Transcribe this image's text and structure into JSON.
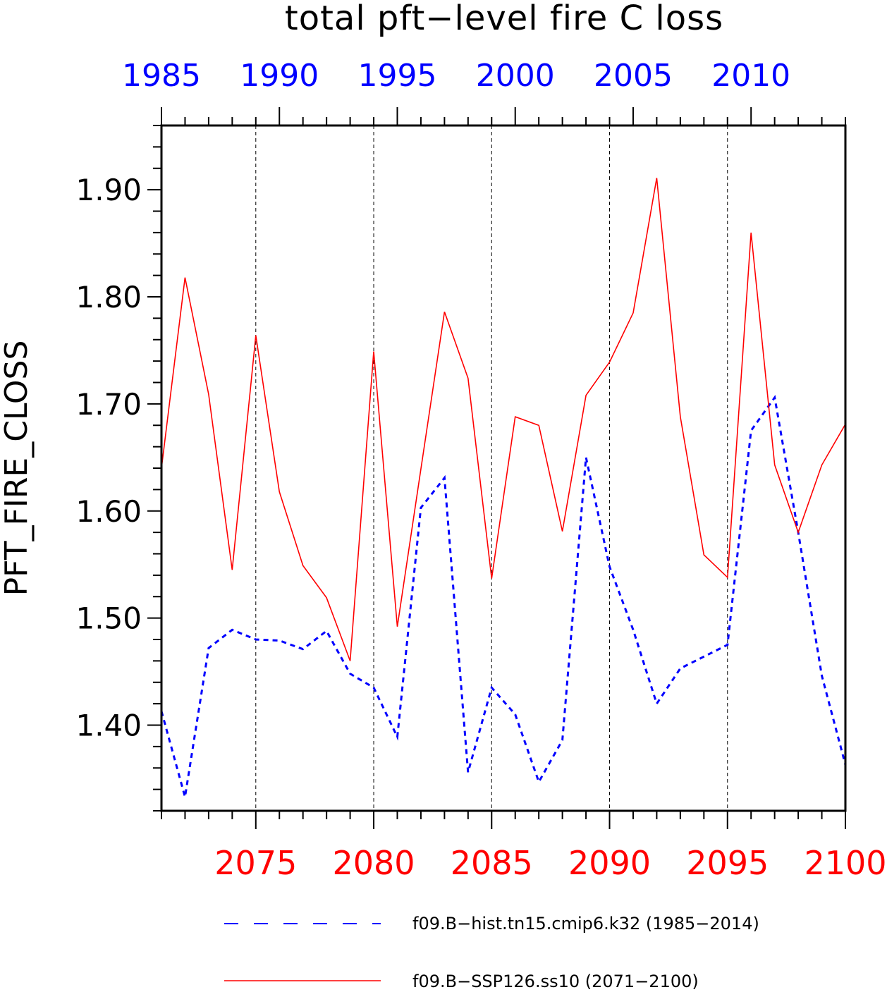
{
  "chart_data": {
    "type": "line",
    "title": "total pft−level fire C loss",
    "ylabel": "PFT_FIRE_CLOSS",
    "ylim": [
      1.32,
      1.96
    ],
    "y_ticks": [
      "1.40",
      "1.50",
      "1.60",
      "1.70",
      "1.80",
      "1.90"
    ],
    "y_tick_values": [
      1.4,
      1.5,
      1.6,
      1.7,
      1.8,
      1.9
    ],
    "y_minor_step": 0.02,
    "bottom_axis": {
      "xlim": [
        2071,
        2100
      ],
      "ticks": [
        2075,
        2080,
        2085,
        2090,
        2095,
        2100
      ],
      "tick_labels": [
        "2075",
        "2080",
        "2085",
        "2090",
        "2095",
        "2100"
      ],
      "color": "#ff0000"
    },
    "top_axis": {
      "xlim": [
        1985,
        2014
      ],
      "ticks": [
        1985,
        1990,
        1995,
        2000,
        2005,
        2010
      ],
      "tick_labels": [
        "1985",
        "1990",
        "1995",
        "2000",
        "2005",
        "2010"
      ],
      "color": "#0000ff"
    },
    "grid": "vertical dashed at major ticks",
    "legend_position": "bottom",
    "series": [
      {
        "name": "f09.B−hist.tn15.cmip6.k32 (1985−2014)",
        "axis": "top",
        "color": "#0000ff",
        "style": "dashed",
        "x": [
          1985,
          1986,
          1987,
          1988,
          1989,
          1990,
          1991,
          1992,
          1993,
          1994,
          1995,
          1996,
          1997,
          1998,
          1999,
          2000,
          2001,
          2002,
          2003,
          2004,
          2005,
          2006,
          2007,
          2008,
          2009,
          2010,
          2011,
          2012,
          2013,
          2014
        ],
        "values": [
          1.413,
          1.333,
          1.472,
          1.489,
          1.48,
          1.479,
          1.471,
          1.488,
          1.448,
          1.435,
          1.389,
          1.603,
          1.631,
          1.356,
          1.435,
          1.41,
          1.347,
          1.386,
          1.65,
          1.548,
          1.489,
          1.42,
          1.453,
          1.464,
          1.475,
          1.675,
          1.706,
          1.58,
          1.446,
          1.363
        ]
      },
      {
        "name": "f09.B−SSP126.ss10 (2071−2100)",
        "axis": "bottom",
        "color": "#ff0000",
        "style": "solid",
        "x": [
          2071,
          2072,
          2073,
          2074,
          2075,
          2076,
          2077,
          2078,
          2079,
          2080,
          2081,
          2082,
          2083,
          2084,
          2085,
          2086,
          2087,
          2088,
          2089,
          2090,
          2091,
          2092,
          2093,
          2094,
          2095,
          2096,
          2097,
          2098,
          2099,
          2100
        ],
        "values": [
          1.64,
          1.818,
          1.709,
          1.545,
          1.764,
          1.618,
          1.549,
          1.519,
          1.46,
          1.749,
          1.492,
          1.639,
          1.786,
          1.724,
          1.537,
          1.688,
          1.68,
          1.581,
          1.708,
          1.739,
          1.785,
          1.911,
          1.688,
          1.559,
          1.538,
          1.86,
          1.643,
          1.58,
          1.643,
          1.681
        ]
      }
    ]
  }
}
